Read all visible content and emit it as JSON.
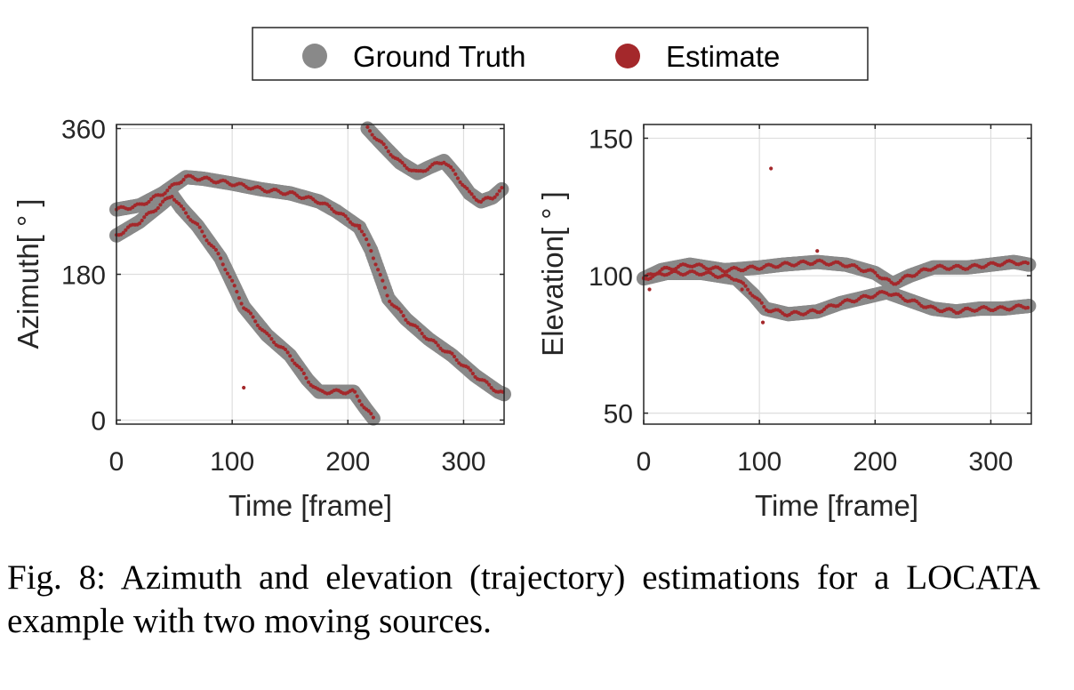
{
  "legend": {
    "items": [
      {
        "label": "Ground Truth",
        "color": "#898989"
      },
      {
        "label": "Estimate",
        "color": "#a4282b"
      }
    ]
  },
  "caption": "Fig. 8: Azimuth and elevation (trajectory) estimations for a LOCATA example with two moving sources.",
  "chart_data": [
    {
      "type": "scatter",
      "xlabel": "Time [frame]",
      "ylabel": "Azimuth[ ° ]",
      "xlim": [
        0,
        335
      ],
      "ylim": [
        -5,
        365
      ],
      "xticks": [
        0,
        100,
        200,
        300
      ],
      "yticks": [
        0,
        180,
        360
      ],
      "grid": true,
      "series": [
        {
          "name": "Ground Truth",
          "color": "#898989",
          "tracks": [
            [
              [
                0,
                260
              ],
              [
                20,
                265
              ],
              [
                40,
                280
              ],
              [
                50,
                290
              ],
              [
                60,
                300
              ],
              [
                75,
                298
              ],
              [
                100,
                292
              ],
              [
                125,
                285
              ],
              [
                150,
                280
              ],
              [
                175,
                270
              ],
              [
                190,
                258
              ],
              [
                200,
                248
              ],
              [
                210,
                238
              ]
            ],
            [
              [
                0,
                228
              ],
              [
                20,
                245
              ],
              [
                40,
                268
              ],
              [
                48,
                278
              ],
              [
                56,
                262
              ],
              [
                70,
                240
              ],
              [
                90,
                200
              ],
              [
                110,
                140
              ],
              [
                130,
                105
              ],
              [
                150,
                80
              ],
              [
                165,
                50
              ],
              [
                175,
                35
              ],
              [
                190,
                35
              ],
              [
                205,
                35
              ],
              [
                215,
                15
              ],
              [
                222,
                2
              ]
            ],
            [
              [
                210,
                238
              ],
              [
                220,
                210
              ],
              [
                235,
                150
              ],
              [
                250,
                125
              ],
              [
                270,
                100
              ],
              [
                290,
                80
              ],
              [
                310,
                55
              ],
              [
                330,
                35
              ],
              [
                335,
                32
              ]
            ],
            [
              [
                217,
                360
              ],
              [
                230,
                340
              ],
              [
                245,
                318
              ],
              [
                260,
                305
              ],
              [
                270,
                312
              ],
              [
                283,
                320
              ],
              [
                295,
                300
              ],
              [
                305,
                280
              ],
              [
                315,
                270
              ],
              [
                325,
                275
              ],
              [
                333,
                285
              ]
            ]
          ]
        },
        {
          "name": "Estimate",
          "color": "#a4282b",
          "outliers": [
            [
              110,
              40
            ]
          ]
        }
      ]
    },
    {
      "type": "scatter",
      "xlabel": "Time [frame]",
      "ylabel": "Elevation[ ° ]",
      "xlim": [
        0,
        335
      ],
      "ylim": [
        46,
        155
      ],
      "xticks": [
        0,
        100,
        200,
        300
      ],
      "yticks": [
        50,
        100,
        150
      ],
      "grid": true,
      "series": [
        {
          "name": "Ground Truth",
          "color": "#898989",
          "tracks": [
            [
              [
                0,
                99
              ],
              [
                15,
                102
              ],
              [
                40,
                104
              ],
              [
                70,
                102
              ],
              [
                100,
                103
              ],
              [
                120,
                104
              ],
              [
                150,
                105
              ],
              [
                175,
                104
              ],
              [
                200,
                101
              ],
              [
                215,
                97
              ],
              [
                230,
                100
              ],
              [
                250,
                103
              ],
              [
                280,
                103
              ],
              [
                300,
                104
              ],
              [
                320,
                105
              ],
              [
                333,
                104
              ]
            ],
            [
              [
                0,
                99
              ],
              [
                20,
                101
              ],
              [
                50,
                101
              ],
              [
                80,
                99
              ],
              [
                95,
                93
              ],
              [
                105,
                88
              ],
              [
                125,
                86
              ],
              [
                150,
                87
              ],
              [
                170,
                90
              ],
              [
                190,
                92
              ],
              [
                210,
                94
              ],
              [
                230,
                91
              ],
              [
                250,
                88
              ],
              [
                270,
                87
              ],
              [
                290,
                88
              ],
              [
                310,
                88
              ],
              [
                333,
                89
              ]
            ]
          ]
        },
        {
          "name": "Estimate",
          "color": "#a4282b",
          "outliers": [
            [
              110,
              139
            ],
            [
              103,
              83
            ],
            [
              150,
              109
            ],
            [
              5,
              95
            ],
            [
              85,
              95
            ]
          ]
        }
      ]
    }
  ]
}
